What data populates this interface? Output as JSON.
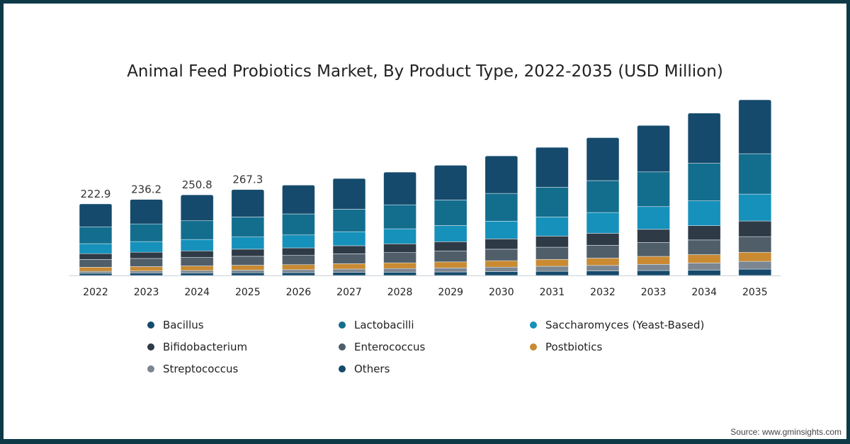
{
  "chart_data": {
    "type": "bar",
    "stacked": true,
    "title": "Animal Feed Probiotics Market, By Product Type, 2022-2035 (USD Million)",
    "xlabel": "",
    "ylabel": "",
    "categories": [
      "2022",
      "2023",
      "2024",
      "2025",
      "2026",
      "2027",
      "2028",
      "2029",
      "2030",
      "2031",
      "2032",
      "2033",
      "2034",
      "2035"
    ],
    "total_labels": [
      "222.9",
      "236.2",
      "250.8",
      "267.3"
    ],
    "series": [
      {
        "name": "Others",
        "color": "#164a6b",
        "values": [
          6.9,
          7.4,
          7.9,
          8.4,
          8.9,
          9.6,
          10.3,
          11.0,
          12.1,
          13.0,
          14.1,
          15.4,
          16.8,
          19.7
        ]
      },
      {
        "name": "Streptococcus",
        "color": "#7b8691",
        "values": [
          6.0,
          6.6,
          7.5,
          8.3,
          9.0,
          10.3,
          11.3,
          12.4,
          13.8,
          15.6,
          17.2,
          19.2,
          21.8,
          24.1
        ]
      },
      {
        "name": "Postbiotics",
        "color": "#c98a32",
        "values": [
          12.9,
          13.7,
          14.3,
          15.2,
          15.8,
          16.9,
          17.7,
          18.9,
          20.1,
          21.5,
          22.8,
          24.8,
          26.4,
          28.4
        ]
      },
      {
        "name": "Enterococcus",
        "color": "#4f5e69",
        "values": [
          24.1,
          25.3,
          26.3,
          27.8,
          28.8,
          30.5,
          31.9,
          33.7,
          35.8,
          37.9,
          40.0,
          43.1,
          45.6,
          48.7
        ]
      },
      {
        "name": "Bifidobacterium",
        "color": "#2e3a45",
        "values": [
          18.1,
          19.4,
          20.6,
          22.2,
          23.4,
          25.4,
          27.4,
          29.2,
          32.1,
          34.7,
          37.4,
          41.2,
          44.6,
          48.7
        ]
      },
      {
        "name": "Saccharomyces (Yeast-Based)",
        "color": "#1591bb",
        "values": [
          31.0,
          33.1,
          35.4,
          38.0,
          40.3,
          43.5,
          46.7,
          50.2,
          55.2,
          59.5,
          64.5,
          70.7,
          77.1,
          83.7
        ]
      },
      {
        "name": "Lactobacilli",
        "color": "#136e8e",
        "values": [
          51.9,
          55.0,
          58.4,
          62.2,
          65.5,
          70.1,
          74.7,
          79.7,
          86.4,
          92.3,
          99.4,
          108.1,
          117.0,
          125.8
        ]
      },
      {
        "name": "Bacillus",
        "color": "#154a6c",
        "values": [
          72.0,
          76.1,
          80.5,
          85.3,
          89.7,
          95.7,
          101.8,
          108.0,
          116.7,
          124.5,
          133.7,
          144.6,
          156.2,
          167.9
        ]
      }
    ],
    "legend": [
      "Bacillus",
      "Lactobacilli",
      "Saccharomyces (Yeast-Based)",
      "Bifidobacterium",
      "Enterococcus",
      "Postbiotics",
      "Streptococcus",
      "Others"
    ],
    "legend_placement": "bottom",
    "grid": false
  },
  "source": "Source: www.gminsights.com"
}
